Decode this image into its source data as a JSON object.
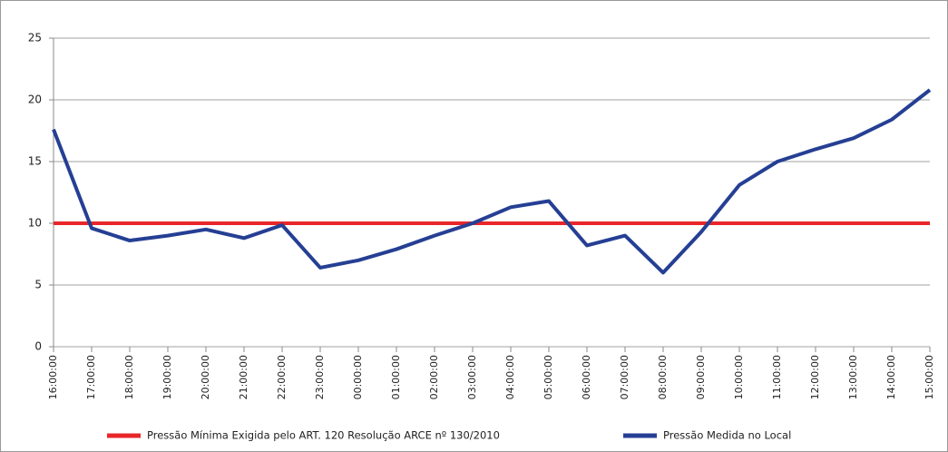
{
  "chart_data": {
    "type": "line",
    "categories": [
      "16:00:00",
      "17:00:00",
      "18:00:00",
      "19:00:00",
      "20:00:00",
      "21:00:00",
      "22:00:00",
      "23:00:00",
      "00:00:00",
      "01:00:00",
      "02:00:00",
      "03:00:00",
      "04:00:00",
      "05:00:00",
      "06:00:00",
      "07:00:00",
      "08:00:00",
      "09:00:00",
      "10:00:00",
      "11:00:00",
      "12:00:00",
      "13:00:00",
      "14:00:00",
      "15:00:00"
    ],
    "series": [
      {
        "name": "Pressão Mínima Exigida pelo ART. 120 Resolução ARCE nº 130/2010",
        "color": "#e8262a",
        "values": [
          10,
          10,
          10,
          10,
          10,
          10,
          10,
          10,
          10,
          10,
          10,
          10,
          10,
          10,
          10,
          10,
          10,
          10,
          10,
          10,
          10,
          10,
          10,
          10
        ]
      },
      {
        "name": "Pressão Medida no Local",
        "color": "#253f94",
        "values": [
          17.6,
          9.6,
          8.6,
          9.0,
          9.5,
          8.8,
          9.85,
          6.4,
          7.0,
          7.9,
          9.0,
          10.0,
          11.3,
          11.8,
          8.2,
          9.0,
          6.0,
          9.3,
          13.1,
          15.0,
          16.0,
          16.9,
          18.4,
          20.8
        ]
      }
    ],
    "ylim": [
      0,
      25
    ],
    "yticks": [
      0,
      5,
      10,
      15,
      20,
      25
    ],
    "grid": true,
    "legend": "bottom"
  }
}
